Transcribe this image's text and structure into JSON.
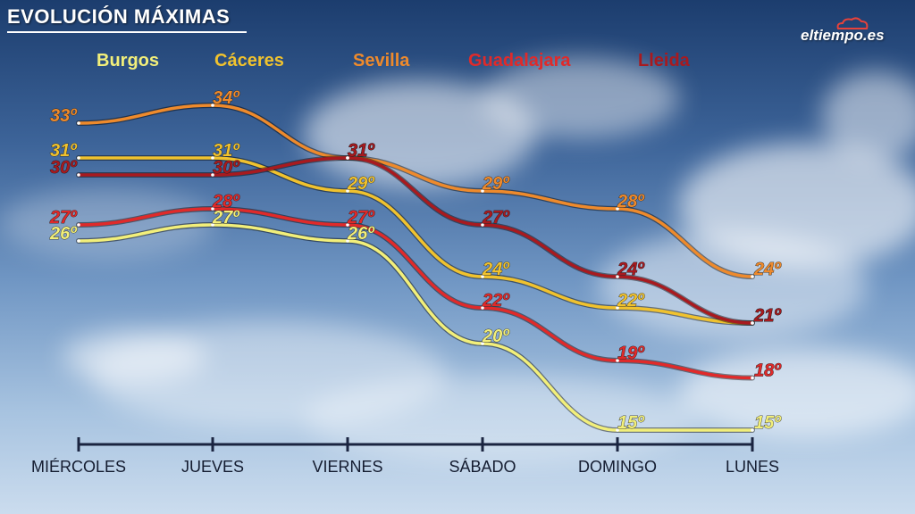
{
  "title": "EVOLUCIÓN MÁXIMAS",
  "logo": "eltiempo.es",
  "chart_data": {
    "type": "line",
    "categories": [
      "MIÉRCOLES",
      "JUEVES",
      "VIERNES",
      "SÁBADO",
      "DOMINGO",
      "LUNES"
    ],
    "value_suffix": "º",
    "series": [
      {
        "name": "Burgos",
        "color": "#f2ef7a",
        "values": [
          26,
          27,
          26,
          20,
          15,
          15
        ]
      },
      {
        "name": "Cáceres",
        "color": "#f0c22e",
        "values": [
          31,
          31,
          29,
          24,
          22,
          21
        ]
      },
      {
        "name": "Sevilla",
        "color": "#ee8a2c",
        "values": [
          33,
          34,
          31,
          29,
          28,
          24
        ]
      },
      {
        "name": "Guadalajara",
        "color": "#e02a2a",
        "values": [
          27,
          28,
          27,
          22,
          19,
          18
        ]
      },
      {
        "name": "Lleida",
        "color": "#a81a1f",
        "values": [
          30,
          30,
          31,
          27,
          24,
          21
        ]
      }
    ]
  }
}
